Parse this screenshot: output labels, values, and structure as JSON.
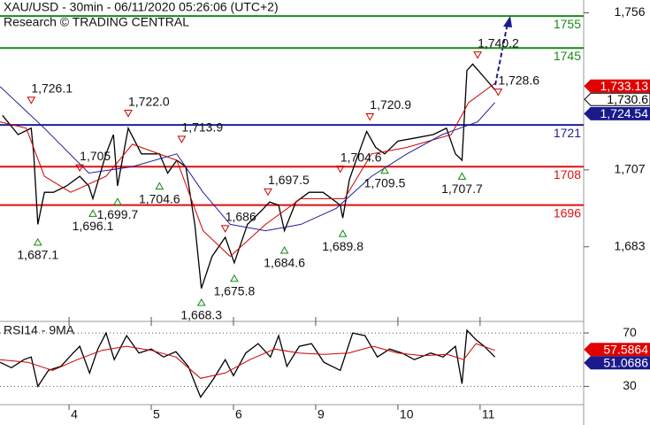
{
  "chart_data": [
    {
      "type": "line",
      "title": "XAU/USD - 30min - 06/11/2020 05:26:06 (UTC+2)",
      "subtitle": "Research © TRADING CENTRAL",
      "xlim": [
        0.16,
        7.26
      ],
      "ylim": [
        1660,
        1760
      ],
      "yticks": [
        {
          "value": 1683,
          "label": "1,683"
        },
        {
          "value": 1707,
          "label": "1,707"
        },
        {
          "value": 1756,
          "label": "1,756"
        }
      ],
      "series": [
        {
          "color": "#000000",
          "x": [
            0.19,
            0.38,
            0.54,
            0.57,
            0.62,
            0.7,
            0.81,
            0.97,
            1.13,
            1.24,
            1.29,
            1.45,
            1.54,
            1.59,
            1.72,
            1.88,
            2.1,
            2.2,
            2.31,
            2.42,
            2.53,
            2.61,
            2.74,
            2.9,
            3.01,
            3.17,
            3.33,
            3.44,
            3.55,
            3.62,
            3.76,
            3.92,
            4.09,
            4.3,
            4.33,
            4.41,
            4.52,
            4.62,
            4.73,
            4.84,
            5.0,
            5.22,
            5.43,
            5.59,
            5.7,
            5.78,
            5.84,
            5.91,
            6.08,
            6.18
          ],
          "values": [
            1724,
            1718,
            1720,
            1712,
            1690,
            1700,
            1700,
            1702,
            1705,
            1702,
            1698,
            1712,
            1718,
            1702,
            1720,
            1712,
            1712,
            1706,
            1710,
            1708,
            1690,
            1670,
            1680,
            1686,
            1678,
            1690,
            1694,
            1697,
            1696,
            1688,
            1697,
            1700,
            1700,
            1696,
            1692,
            1704,
            1712,
            1719,
            1714,
            1712,
            1716,
            1717,
            1718,
            1720,
            1712,
            1710,
            1738,
            1740,
            1735,
            1732
          ]
        },
        {
          "color": "#cc0000",
          "x": [
            0.16,
            0.48,
            0.7,
            1.02,
            1.45,
            1.77,
            2.31,
            2.63,
            2.96,
            3.39,
            3.82,
            4.35,
            4.68,
            5.11,
            5.65,
            5.86,
            6.18
          ],
          "values": [
            1722,
            1720,
            1705,
            1700,
            1705,
            1715,
            1710,
            1688,
            1680,
            1690,
            1698,
            1698,
            1712,
            1714,
            1718,
            1728,
            1734
          ]
        },
        {
          "color": "#1f1f9a",
          "x": [
            0.16,
            0.7,
            1.24,
            1.77,
            2.31,
            2.63,
            2.96,
            3.39,
            3.82,
            4.25,
            4.68,
            5.11,
            5.54,
            5.97,
            6.18
          ],
          "values": [
            1733,
            1720,
            1706,
            1708,
            1712,
            1700,
            1690,
            1688,
            1690,
            1695,
            1705,
            1712,
            1718,
            1722,
            1728
          ]
        }
      ],
      "levels": {
        "values": [
          1755,
          1745,
          1721,
          1708,
          1696
        ],
        "colors": [
          "#1a8a1a",
          "#1a8a1a",
          "#1f1f9a",
          "#dd1111",
          "#dd1111"
        ]
      },
      "highs": [
        {
          "x": 0.54,
          "value": 1726.1,
          "label": "1,726.1"
        },
        {
          "x": 1.13,
          "value": 1705,
          "label": "1,705"
        },
        {
          "x": 1.72,
          "value": 1722.0,
          "label": "1,722.0"
        },
        {
          "x": 2.37,
          "value": 1713.9,
          "label": "1,713.9"
        },
        {
          "x": 2.9,
          "value": 1686,
          "label": "1,686"
        },
        {
          "x": 3.42,
          "value": 1697.5,
          "label": "1,697.5"
        },
        {
          "x": 4.3,
          "value": 1704.6,
          "label": "1,704.6"
        },
        {
          "x": 4.66,
          "value": 1720.9,
          "label": "1,720.9"
        },
        {
          "x": 5.97,
          "value": 1740.2,
          "label": "1,740.2"
        },
        {
          "x": 6.22,
          "value": 1728.6,
          "label": "1,728.6"
        }
      ],
      "lows": [
        {
          "x": 0.62,
          "value": 1687.1,
          "label": "1,687.1"
        },
        {
          "x": 1.29,
          "value": 1696.1,
          "label": "1,696.1"
        },
        {
          "x": 1.59,
          "value": 1699.7,
          "label": "1,699.7"
        },
        {
          "x": 2.1,
          "value": 1704.6,
          "label": "1,704.6"
        },
        {
          "x": 2.61,
          "value": 1668.3,
          "label": "1,668.3"
        },
        {
          "x": 3.01,
          "value": 1675.8,
          "label": "1,675.8"
        },
        {
          "x": 3.62,
          "value": 1684.6,
          "label": "1,684.6"
        },
        {
          "x": 4.33,
          "value": 1689.8,
          "label": "1,689.8"
        },
        {
          "x": 4.84,
          "value": 1709.5,
          "label": "1,709.5"
        },
        {
          "x": 5.78,
          "value": 1707.7,
          "label": "1,707.7"
        }
      ],
      "badges": [
        {
          "value": 1733.13,
          "label": "1,733.13",
          "color": "#e00000"
        },
        {
          "value": 1730.6,
          "label": "1,730.6",
          "color": "#ffffff"
        },
        {
          "value": 1724.54,
          "label": "1,724.54",
          "color": "#1a1a8c"
        }
      ]
    },
    {
      "type": "line",
      "title": "RSI14 - 9MA",
      "xlim": [
        0.16,
        7.26
      ],
      "ylim": [
        17,
        78
      ],
      "yticks": [
        30,
        70
      ],
      "xticks": [
        {
          "value": 1,
          "label": "4"
        },
        {
          "value": 2,
          "label": "5"
        },
        {
          "value": 3,
          "label": "6"
        },
        {
          "value": 4,
          "label": "9"
        },
        {
          "value": 5,
          "label": "10"
        },
        {
          "value": 6,
          "label": "11"
        }
      ],
      "series": [
        {
          "color": "#000000",
          "x": [
            0.16,
            0.3,
            0.45,
            0.54,
            0.62,
            0.75,
            0.9,
            1.05,
            1.13,
            1.25,
            1.35,
            1.45,
            1.55,
            1.7,
            1.85,
            2.0,
            2.15,
            2.3,
            2.45,
            2.6,
            2.75,
            2.9,
            3.0,
            3.15,
            3.3,
            3.45,
            3.55,
            3.65,
            3.8,
            3.95,
            4.1,
            4.3,
            4.45,
            4.6,
            4.75,
            4.9,
            5.05,
            5.2,
            5.4,
            5.55,
            5.7,
            5.78,
            5.84,
            5.95,
            6.05,
            6.18
          ],
          "values": [
            48,
            44,
            50,
            52,
            30,
            42,
            45,
            55,
            60,
            40,
            58,
            70,
            50,
            68,
            55,
            58,
            52,
            56,
            45,
            22,
            35,
            50,
            38,
            55,
            62,
            52,
            68,
            45,
            60,
            62,
            48,
            42,
            70,
            68,
            52,
            58,
            55,
            50,
            55,
            52,
            60,
            32,
            72,
            65,
            60,
            52
          ]
        },
        {
          "color": "#cc0000",
          "x": [
            0.16,
            0.5,
            0.8,
            1.1,
            1.4,
            1.7,
            2.0,
            2.3,
            2.6,
            2.9,
            3.2,
            3.5,
            3.8,
            4.1,
            4.4,
            4.7,
            5.0,
            5.3,
            5.6,
            5.8,
            5.95,
            6.18
          ],
          "values": [
            50,
            48,
            42,
            50,
            57,
            60,
            57,
            52,
            36,
            40,
            50,
            58,
            55,
            54,
            55,
            60,
            55,
            53,
            54,
            50,
            62,
            57
          ]
        }
      ],
      "badges": [
        {
          "value": 57.5864,
          "label": "57.5864",
          "color": "#e00000"
        },
        {
          "value": 51.0686,
          "label": "51.0686",
          "color": "#1a1a8c"
        }
      ]
    }
  ]
}
